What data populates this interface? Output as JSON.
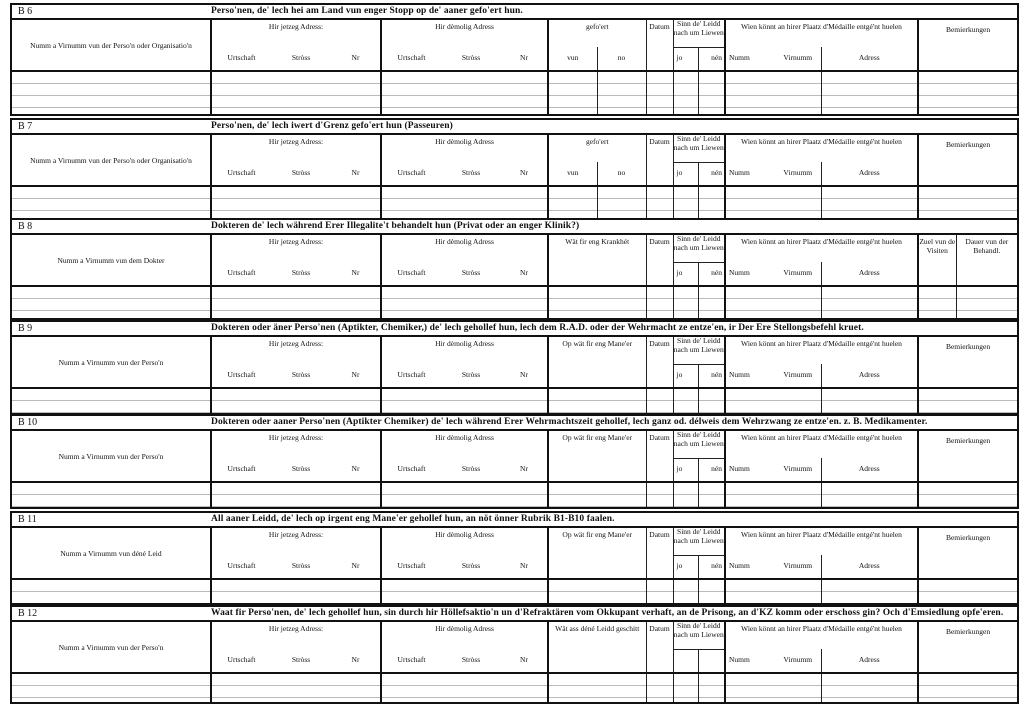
{
  "labels": {
    "jetzeg": "Hir jetzeg Adress:",
    "demolig": "Hir dèmolig Adress",
    "urtschaft": "Urtschaft",
    "stross": "Stròss",
    "nr": "Nr",
    "gefoert": "gefo'ert",
    "vun": "vun",
    "no": "no",
    "datum": "Datum",
    "sinn": "Sinn de' Leidd nach um Liewen",
    "jo": "jo",
    "nen": "nén",
    "wien": "Wien könnt an hirer Plaatz d'Médaille entgé'nt huelen",
    "numm": "Numm",
    "virnumm": "Virnumm",
    "adress": "Adress",
    "bemierkungen": "Bemierkungen",
    "zuel": "Zuel vun de Visiten",
    "dauer": "Dauer vun der Behandl."
  },
  "sections": [
    {
      "code": "B 6",
      "title": "Perso'nen, de' lech hei am Land vun enger Stopp op de' aaner gefo'ert hun.",
      "name_col": "Numm a Virnumm vun der Perso'n oder Organisatio'n",
      "third": "gefoert",
      "last": "bem",
      "show_jo": true
    },
    {
      "code": "B 7",
      "title": "Perso'nen, de' lech iwert d'Grenz gefo'ert hun (Passeuren)",
      "name_col": "Numm a Virnumm vun der Perso'n oder Organisatio'n",
      "third": "gefoert",
      "last": "bem",
      "show_jo": true
    },
    {
      "code": "B 8",
      "title": "Dokteren de' lech während Erer Illegalite't behandelt hun (Privat oder an enger Klinik?)",
      "name_col": "Numm a Virnumm vun dem Dokter",
      "third": "Wät fir eng Krankhét",
      "last": "visiten",
      "show_jo": true
    },
    {
      "code": "B 9",
      "title": "Dokteren oder äner Perso'nen (Aptikter, Chemiker,) de' lech gehollef hun, lech dem R.A.D. oder der Wehrmacht ze entze'en, ir Der Ere Stellongsbefehl kruet.",
      "name_col": "Numm a Virnumm vun der Perso'n",
      "third": "Op wät fir eng Mane'er",
      "last": "bem",
      "show_jo": true
    },
    {
      "code": "B 10",
      "title": "Dokteren oder aaner Perso'nen (Aptikter Chemiker) de' lech während Erer Wehrmachtszeit gehollef, lech ganz od. délweis dem Wehrzwang ze entze'en. z. B. Medikamenter.",
      "name_col": "Numm a Virnumm vun der Perso'n",
      "third": "Op wät fir eng Mane'er",
      "last": "bem",
      "show_jo": true
    },
    {
      "code": "B 11",
      "title": "All aaner Leidd, de' lech op irgent eng Mane'er gehollef hun, an nöt önner Rubrik B1-B10 faalen.",
      "name_col": "Numm a Virnumm vun déné Leid",
      "third": "Op wät fir eng Mane'er",
      "last": "bem",
      "show_jo": true
    },
    {
      "code": "B 12",
      "title": "Waat fir Perso'nen, de' lech gehollef hun, sin durch hir Höllefsaktio'n un d'Refraktären vom Okkupant verhaft, an de Prisong, an d'KZ komm oder erschoss gin? Och d'Emsiedlung opfe'eren.",
      "name_col": "Numm a Virnumm vun der Perso'n",
      "third": "Wät ass déné Leidd geschitt",
      "last": "bem",
      "show_jo": false
    }
  ]
}
